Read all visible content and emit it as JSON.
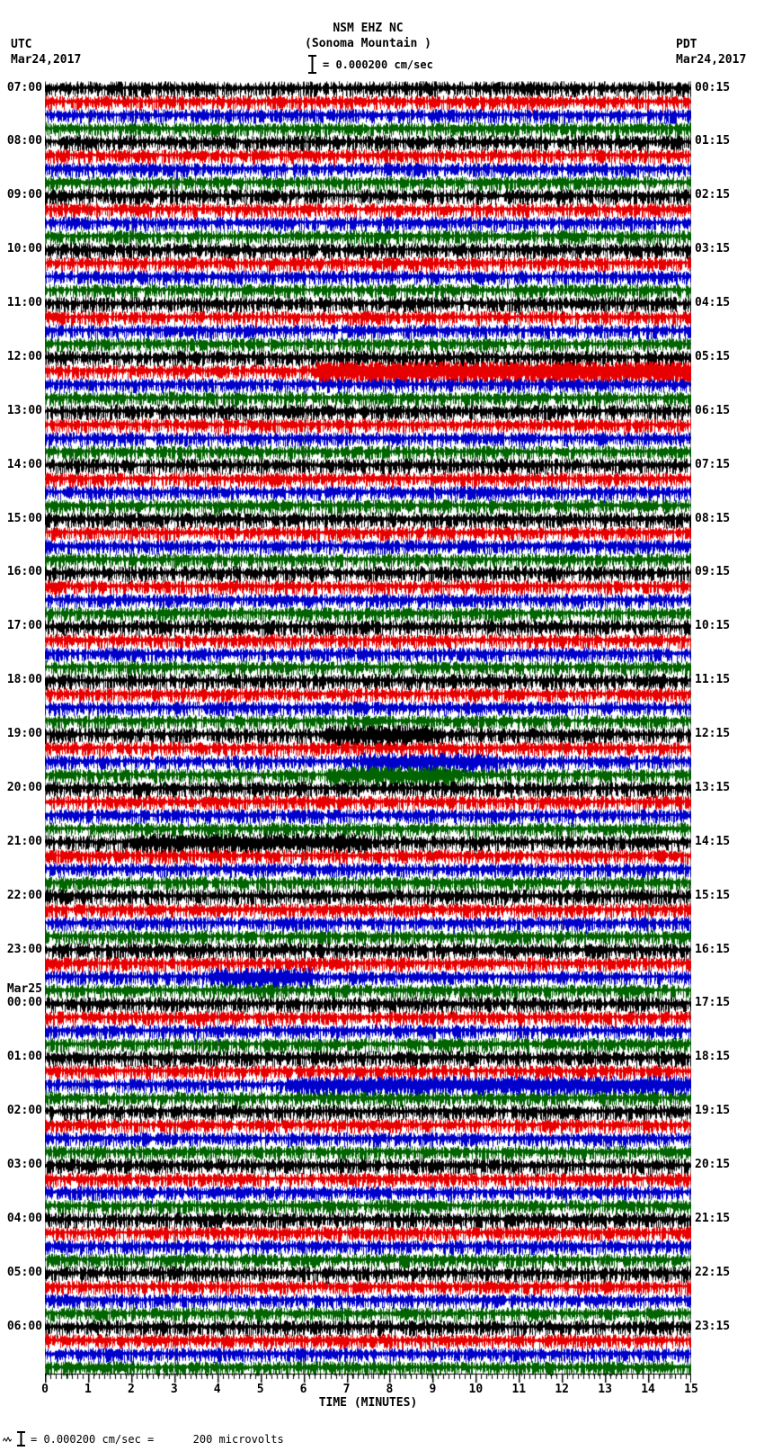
{
  "header": {
    "station": "NSM EHZ NC",
    "location": "(Sonoma Mountain )",
    "scale_label": "= 0.000200 cm/sec",
    "left_tz": "UTC",
    "left_date": "Mar24,2017",
    "right_tz": "PDT",
    "right_date": "Mar24,2017"
  },
  "x_axis": {
    "label": "TIME (MINUTES)",
    "ticks": [
      "0",
      "1",
      "2",
      "3",
      "4",
      "5",
      "6",
      "7",
      "8",
      "9",
      "10",
      "11",
      "12",
      "13",
      "14",
      "15"
    ]
  },
  "footer": {
    "text": "= 0.000200 cm/sec =      200 microvolts"
  },
  "chart_data": {
    "type": "line",
    "description": "24-hour helicorder seismogram; each horizontal trace is 15 minutes of continuous ground-motion noise, 4 traces per hour, colors cycling black/red/blue/green. UTC hour start labels on the left, PDT quarter-hour end labels on the right.",
    "x_range_minutes": [
      0,
      15
    ],
    "minutes_per_row": 15,
    "rows_total": 96,
    "traces_per_hour": 4,
    "colors_cycle": [
      "#000000",
      "#e80000",
      "#0000cc",
      "#006400"
    ],
    "gridline_color": "#808080",
    "grid_every_minutes": 1,
    "utc_hour_labels": [
      "07:00",
      "08:00",
      "09:00",
      "10:00",
      "11:00",
      "12:00",
      "13:00",
      "14:00",
      "15:00",
      "16:00",
      "17:00",
      "18:00",
      "19:00",
      "20:00",
      "21:00",
      "22:00",
      "23:00",
      "00:00",
      "01:00",
      "02:00",
      "03:00",
      "04:00",
      "05:00",
      "06:00"
    ],
    "pdt_quarter_labels": [
      "00:15",
      "01:15",
      "02:15",
      "03:15",
      "04:15",
      "05:15",
      "06:15",
      "07:15",
      "08:15",
      "09:15",
      "10:15",
      "11:15",
      "12:15",
      "13:15",
      "14:15",
      "15:15",
      "16:15",
      "17:15",
      "18:15",
      "19:15",
      "20:15",
      "21:15",
      "22:15",
      "23:15"
    ],
    "date_rollover": {
      "label": "Mar25",
      "above_utc_label": "00:00"
    },
    "events": [
      {
        "row": 21,
        "start_min": 6.3,
        "end_min": 15,
        "amp": 1.9
      },
      {
        "row": 48,
        "start_min": 6.5,
        "end_min": 9,
        "amp": 1.5
      },
      {
        "row": 50,
        "start_min": 7.3,
        "end_min": 10.5,
        "amp": 1.45
      },
      {
        "row": 51,
        "start_min": 6.6,
        "end_min": 9.5,
        "amp": 1.45
      },
      {
        "row": 56,
        "start_min": 2.0,
        "end_min": 7.5,
        "amp": 1.35
      },
      {
        "row": 66,
        "start_min": 3.8,
        "end_min": 6.2,
        "amp": 1.6
      },
      {
        "row": 74,
        "start_min": 5.6,
        "end_min": 15,
        "amp": 1.45
      }
    ]
  }
}
